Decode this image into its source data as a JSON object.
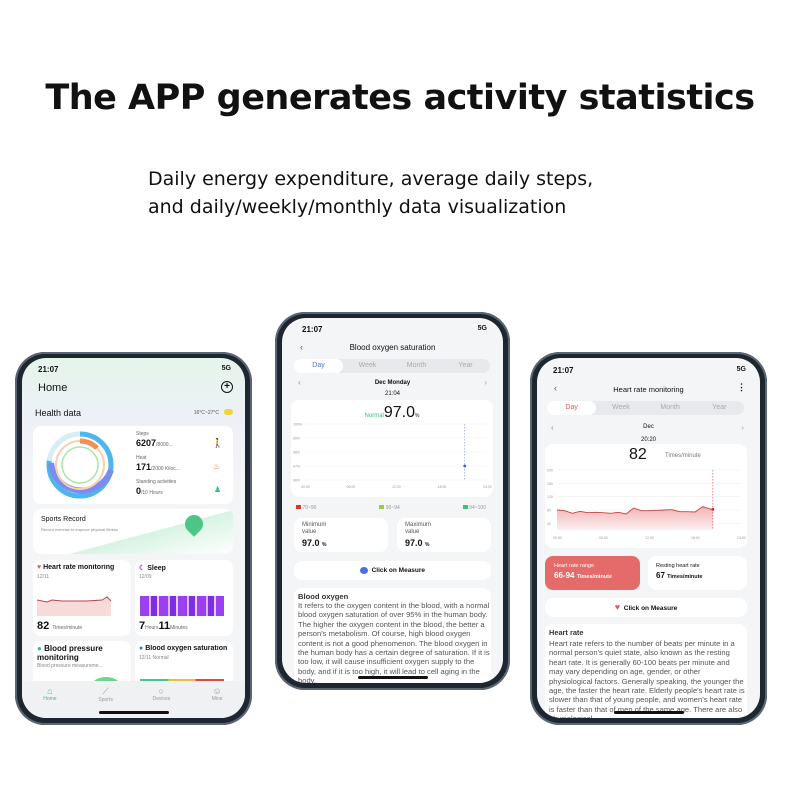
{
  "headline": "The APP generates activity statistics",
  "subtitle": [
    "Daily energy expenditure, average daily steps,",
    "and daily/weekly/monthly data visualization"
  ],
  "status": {
    "time": "21:07",
    "network": "5G"
  },
  "home": {
    "title": "Home",
    "health_data": "Health data",
    "weather": "16°C~27°C",
    "steps_label": "Steps",
    "steps_value": "6207",
    "steps_goal": "/8000...",
    "heat_label": "Heat",
    "heat_value": "171",
    "heat_goal": "/2000 Kiloc...",
    "standing_label": "Standing activities",
    "standing_value": "0",
    "standing_goal": "/10 Hours",
    "sports_title": "Sports Record",
    "sports_sub": "Record exercise to improve physical fitness",
    "hr_title": "Heart rate monitoring",
    "hr_date": "12/11",
    "hr_value": "82",
    "hr_unit": "Times/minute",
    "sleep_title": "Sleep",
    "sleep_date": "12/09",
    "sleep_hours": "7",
    "sleep_hours_unit": "Hours",
    "sleep_min": "11",
    "sleep_min_unit": "Minutes",
    "bp_title": "Blood pressure monitoring",
    "bp_sub": "Blood pressure measureme...",
    "bo_title": "Blood oxygen saturation",
    "bo_sub": "12/11 Normal",
    "tabs": [
      "Home",
      "Sports",
      "Devices",
      "Mine"
    ],
    "accent": "#3dbd7d"
  },
  "oxygen": {
    "title": "Blood oxygen saturation",
    "tabs": [
      "Day",
      "Week",
      "Month",
      "Year"
    ],
    "date": "Dec Monday",
    "time": "21:04",
    "status": "Normal",
    "value": "97.0",
    "unit": "%",
    "legend": [
      "70~90",
      "90~94",
      "94~100"
    ],
    "legend_colors": [
      "#d33a2c",
      "#9ccc3d",
      "#3dbd7d"
    ],
    "min_label": "Minimum value",
    "min_value": "97.0",
    "max_label": "Maximum value",
    "max_value": "97.0",
    "measure": "Click on Measure",
    "info_title": "Blood oxygen",
    "info_text": "It refers to the oxygen content in the blood, with a normal blood oxygen saturation of over 95% in the human body. The higher the oxygen content in the blood, the better a person's metabolism. Of course, high blood oxygen content is not a good phenomenon. The blood oxygen in the human body has a certain degree of saturation. If it is too low, it will cause insufficient oxygen supply to the body, and if it is too high, it will lead to cell aging in the body.",
    "chart_data": {
      "type": "scatter",
      "y_ticks": [
        "100%",
        "99%",
        "98%",
        "97%",
        "96%"
      ],
      "x_ticks": [
        "00:00",
        "06:00",
        "12:00",
        "18:00",
        "24:00"
      ],
      "points": [
        {
          "x": "21:04",
          "y": 97
        }
      ]
    }
  },
  "heart": {
    "title": "Heart rate monitoring",
    "tabs": [
      "Day",
      "Week",
      "Month",
      "Year"
    ],
    "date": "Dec",
    "time": "20:20",
    "value": "82",
    "unit": "Times/minute",
    "range_label": "Heart rate range",
    "range_value": "66-94",
    "range_unit": "Times/minute",
    "rest_label": "Resting heart rate",
    "rest_value": "67",
    "rest_unit": "Times/minute",
    "measure": "Click on Measure",
    "info_title": "Heart rate",
    "info_text": "Heart rate refers to the number of beats per minute in a normal person's quiet state, also known as the resting heart rate. It is generally 60-100 beats per minute and may vary depending on age, gender, or other physiological factors. Generally speaking, the younger the age, the faster the heart rate. Elderly people's heart rate is slower than that of young people, and women's heart rate is faster than that of men of the same age. There are also physiological",
    "accent": "#e05a5a",
    "chart_data": {
      "type": "area",
      "y_ticks": [
        "200",
        "160",
        "120",
        "80",
        "40"
      ],
      "ylim": [
        20,
        200
      ],
      "x_ticks": [
        "00:00",
        "06:00",
        "12:00",
        "18:00",
        "24:00"
      ],
      "x": [
        0,
        1,
        2,
        3,
        4,
        5,
        6,
        7,
        8,
        9,
        10,
        11,
        12,
        13,
        14,
        15,
        16,
        17,
        18,
        19,
        20,
        20.33
      ],
      "y": [
        80,
        78,
        70,
        76,
        72,
        73,
        72,
        70,
        73,
        68,
        86,
        78,
        78,
        79,
        80,
        81,
        75,
        75,
        74,
        90,
        83,
        82
      ]
    }
  }
}
